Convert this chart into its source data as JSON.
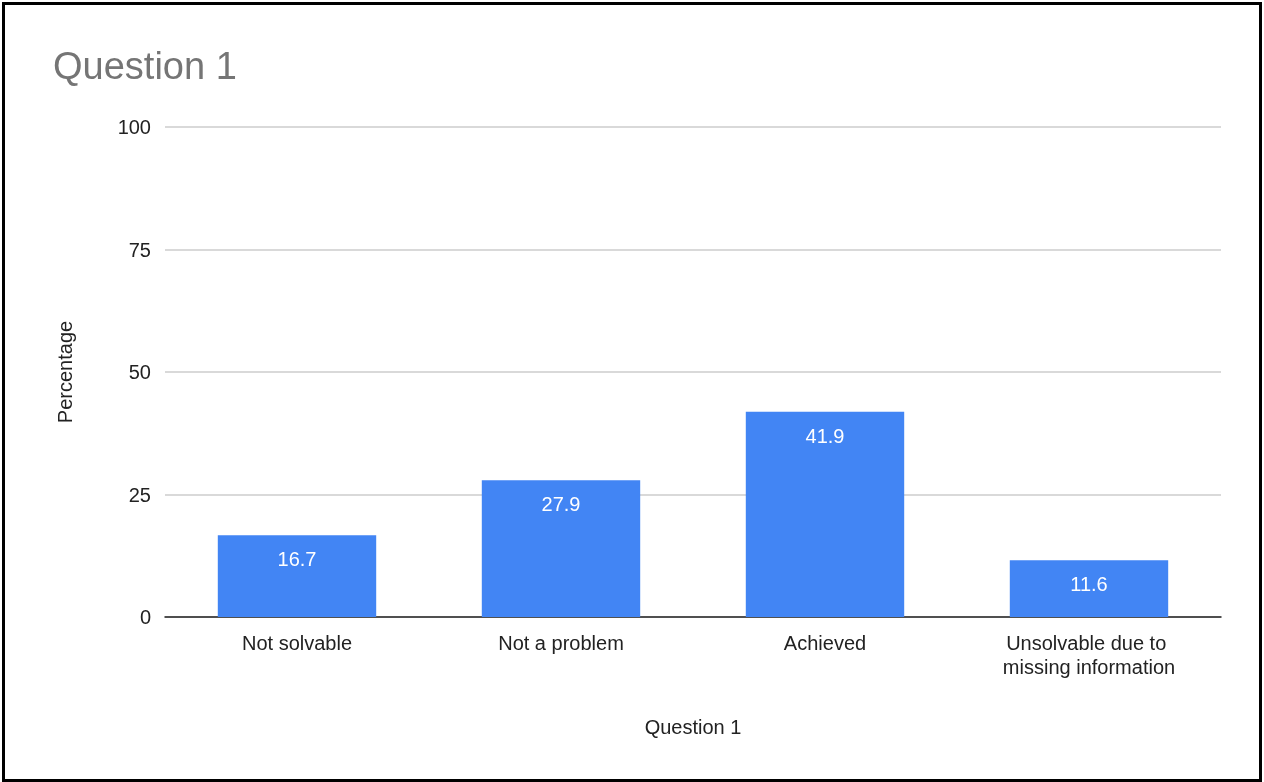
{
  "chart_data": {
    "type": "bar",
    "title": "Question 1",
    "xlabel": "Question 1",
    "ylabel": "Percentage",
    "categories": [
      "Not solvable",
      "Not a problem",
      "Achieved",
      "Unsolvable due to missing information"
    ],
    "values": [
      16.7,
      27.9,
      41.9,
      11.6
    ],
    "color": "#4285f4",
    "ylim": [
      0,
      100
    ],
    "yticks": [
      0,
      25,
      50,
      75,
      100
    ],
    "grid": "y",
    "data_labels": true
  }
}
